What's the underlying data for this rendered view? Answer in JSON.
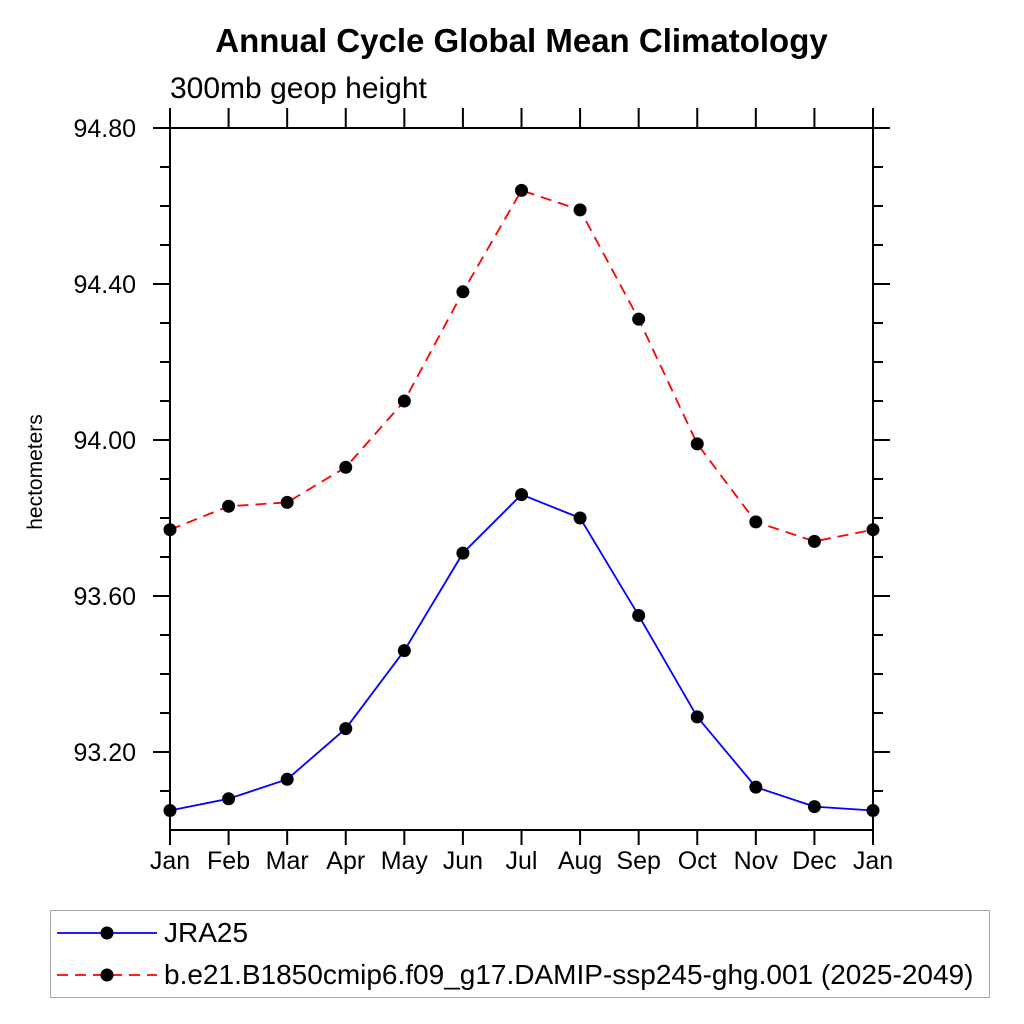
{
  "chart_data": {
    "type": "line",
    "title": "Annual Cycle Global Mean Climatology",
    "subtitle": "300mb geop height",
    "xlabel": "",
    "ylabel": "hectometers",
    "categories": [
      "Jan",
      "Feb",
      "Mar",
      "Apr",
      "May",
      "Jun",
      "Jul",
      "Aug",
      "Sep",
      "Oct",
      "Nov",
      "Dec",
      "Jan"
    ],
    "ylim": [
      93.0,
      94.8
    ],
    "y_major_ticks": [
      93.2,
      93.6,
      94.0,
      94.4,
      94.8
    ],
    "y_tick_labels": [
      "93.20",
      "93.60",
      "94.00",
      "94.40",
      "94.80"
    ],
    "y_minor_interval": 0.1,
    "grid": false,
    "legend_position": "bottom",
    "axis_color": "#000000",
    "marker": {
      "shape": "filled-circle",
      "color": "#000000",
      "radius": 6.5
    },
    "series": [
      {
        "name": "JRA25",
        "color": "#0000ff",
        "line_style": "solid",
        "values": [
          93.05,
          93.08,
          93.13,
          93.26,
          93.46,
          93.71,
          93.86,
          93.8,
          93.55,
          93.29,
          93.11,
          93.06,
          93.05
        ]
      },
      {
        "name": "b.e21.B1850cmip6.f09_g17.DAMIP-ssp245-ghg.001 (2025-2049)",
        "color": "#ff0000",
        "line_style": "dashed",
        "values": [
          93.77,
          93.83,
          93.84,
          93.93,
          94.1,
          94.38,
          94.64,
          94.59,
          94.31,
          93.99,
          93.79,
          93.74,
          93.77
        ]
      }
    ]
  }
}
